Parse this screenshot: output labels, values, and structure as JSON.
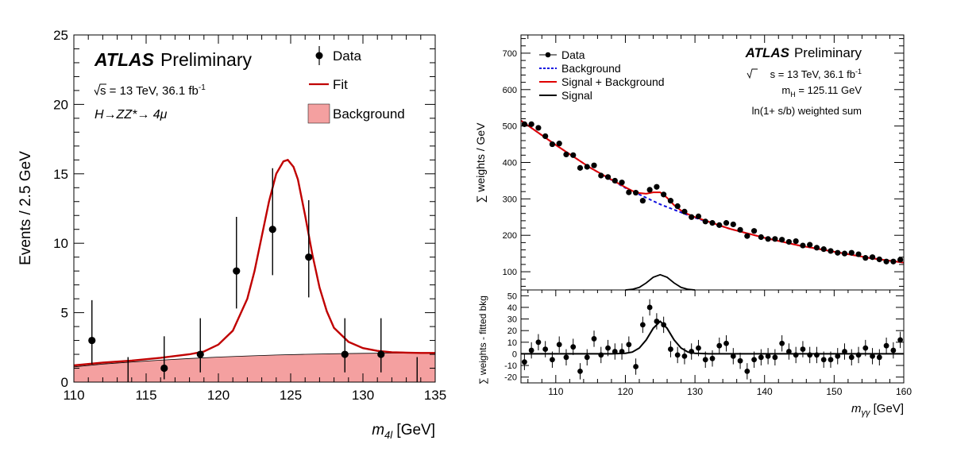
{
  "chart_data": [
    {
      "type": "scatter",
      "panel": "left",
      "ylabel": "Events /  2.5 GeV",
      "xlabel_base": "m",
      "xlabel_sub": "4l",
      "xlabel_unit": " [GeV]",
      "xlim": [
        110,
        135
      ],
      "ylim": [
        0,
        25
      ],
      "xticks": [
        110,
        115,
        120,
        125,
        130,
        135
      ],
      "yticks": [
        0,
        5,
        10,
        15,
        20,
        25
      ],
      "atlas": "ATLAS",
      "prelim": "Preliminary",
      "energy_prefix": "s",
      "energy_text": " = 13 TeV, 36.1 fb",
      "energy_sup": "-1",
      "process_text": "H→ZZ*→ 4μ",
      "legend": {
        "position": "top-right",
        "data_label": "Data",
        "fit_label": "Fit",
        "background_label": "Background"
      },
      "colors": {
        "fit": "#c00000",
        "background_fill": "#f4a0a0",
        "data": "#000000"
      },
      "series": [
        {
          "name": "Data",
          "points": [
            {
              "x": 111.25,
              "y": 3,
              "lo": 1.3,
              "hi": 5.9
            },
            {
              "x": 113.75,
              "y": 0,
              "lo": 0,
              "hi": 1.8
            },
            {
              "x": 116.25,
              "y": 1,
              "lo": 0.2,
              "hi": 3.3
            },
            {
              "x": 118.75,
              "y": 2,
              "lo": 0.7,
              "hi": 4.6
            },
            {
              "x": 121.25,
              "y": 8,
              "lo": 5.3,
              "hi": 11.9
            },
            {
              "x": 123.75,
              "y": 11,
              "lo": 7.7,
              "hi": 15.4
            },
            {
              "x": 126.25,
              "y": 9,
              "lo": 6.1,
              "hi": 13.1
            },
            {
              "x": 128.75,
              "y": 2,
              "lo": 0.7,
              "hi": 4.6
            },
            {
              "x": 131.25,
              "y": 2,
              "lo": 0.7,
              "hi": 4.6
            },
            {
              "x": 133.75,
              "y": 0,
              "lo": 0,
              "hi": 1.8
            }
          ]
        },
        {
          "name": "Fit",
          "x": [
            110,
            112,
            114,
            116,
            118,
            119,
            120,
            121,
            122,
            122.5,
            123,
            123.5,
            124,
            124.5,
            124.8,
            125.2,
            125.5,
            126,
            126.5,
            127,
            127.5,
            128,
            129,
            130,
            131,
            132,
            133,
            134,
            135
          ],
          "y": [
            1.2,
            1.4,
            1.55,
            1.75,
            2.0,
            2.2,
            2.7,
            3.7,
            6.0,
            8.0,
            10.5,
            13.0,
            15.0,
            15.9,
            16.0,
            15.5,
            14.6,
            12.0,
            9.2,
            6.8,
            5.1,
            3.9,
            2.9,
            2.45,
            2.25,
            2.15,
            2.12,
            2.1,
            2.1
          ]
        },
        {
          "name": "Background",
          "x": [
            110,
            112,
            114,
            116,
            118,
            120,
            122,
            124,
            126,
            128,
            130,
            132,
            134,
            135
          ],
          "y": [
            1.1,
            1.3,
            1.45,
            1.58,
            1.7,
            1.8,
            1.88,
            1.95,
            2.0,
            2.04,
            2.07,
            2.09,
            2.1,
            2.1
          ]
        }
      ]
    },
    {
      "type": "scatter",
      "panel": "right-top",
      "ylabel_main": "∑ weights / GeV",
      "xlim": [
        105,
        160
      ],
      "ylim": [
        50,
        750
      ],
      "yticks": [
        100,
        200,
        300,
        400,
        500,
        600,
        700
      ],
      "atlas": "ATLAS",
      "prelim": "Preliminary",
      "energy_prefix": "s",
      "energy_text": " = 13 TeV, 36.1 fb",
      "energy_sup": "-1",
      "mass_base": "m",
      "mass_sub": "H",
      "mass_text": " = 125.11 GeV",
      "weighting_text": "ln(1+ s/b) weighted sum",
      "legend": {
        "position": "top-left",
        "data_label": "Data",
        "background_label": "Background",
        "sb_label": "Signal + Background",
        "signal_label": "Signal"
      },
      "colors": {
        "background": "#1010e0",
        "signal_plus_background": "#e00000",
        "signal": "#000000"
      },
      "series": [
        {
          "name": "Data",
          "x": [
            105.5,
            106.5,
            107.5,
            108.5,
            109.5,
            110.5,
            111.5,
            112.5,
            113.5,
            114.5,
            115.5,
            116.5,
            117.5,
            118.5,
            119.5,
            120.5,
            121.5,
            122.5,
            123.5,
            124.5,
            125.5,
            126.5,
            127.5,
            128.5,
            129.5,
            130.5,
            131.5,
            132.5,
            133.5,
            134.5,
            135.5,
            136.5,
            137.5,
            138.5,
            139.5,
            140.5,
            141.5,
            142.5,
            143.5,
            144.5,
            145.5,
            146.5,
            147.5,
            148.5,
            149.5,
            150.5,
            151.5,
            152.5,
            153.5,
            154.5,
            155.5,
            156.5,
            157.5,
            158.5,
            159.5
          ],
          "y": [
            505,
            505,
            495,
            472,
            450,
            452,
            422,
            420,
            385,
            388,
            392,
            364,
            360,
            350,
            345,
            318,
            317,
            295,
            325,
            333,
            312,
            295,
            280,
            265,
            250,
            252,
            238,
            234,
            228,
            234,
            230,
            215,
            198,
            212,
            195,
            190,
            190,
            188,
            182,
            184,
            172,
            174,
            166,
            162,
            157,
            152,
            150,
            152,
            148,
            138,
            140,
            134,
            128,
            128,
            133
          ]
        },
        {
          "name": "Background",
          "x": [
            105,
            110,
            115,
            120,
            125,
            130,
            135,
            140,
            145,
            150,
            155,
            160
          ],
          "y": [
            515,
            448,
            385,
            330,
            285,
            248,
            218,
            193,
            172,
            155,
            138,
            125
          ]
        },
        {
          "name": "Signal + Background",
          "x": [
            105,
            110,
            115,
            118,
            120,
            121,
            122,
            123,
            124,
            125,
            126,
            127,
            128,
            129,
            130,
            135,
            140,
            145,
            150,
            155,
            160
          ],
          "y": [
            515,
            448,
            385,
            353,
            332,
            322,
            316,
            314,
            318,
            318,
            303,
            283,
            268,
            258,
            250,
            218,
            193,
            172,
            155,
            138,
            125
          ]
        }
      ]
    },
    {
      "type": "line",
      "panel": "right-middle",
      "name": "Signal",
      "x": [
        120,
        121,
        122,
        123,
        124,
        125,
        126,
        127,
        128,
        129,
        130
      ],
      "y": [
        0,
        1,
        4,
        11,
        20,
        24,
        20,
        11,
        4,
        1,
        0
      ]
    },
    {
      "type": "scatter",
      "panel": "right-bottom",
      "ylabel": "∑ weights - fitted bkg",
      "xlabel_base": "m",
      "xlabel_sub": "γγ",
      "xlabel_unit": " [GeV]",
      "xlim": [
        105,
        160
      ],
      "ylim": [
        -25,
        55
      ],
      "xticks": [
        110,
        120,
        130,
        140,
        150,
        160
      ],
      "yticks": [
        -20,
        -10,
        0,
        10,
        20,
        30,
        40,
        50
      ],
      "series": [
        {
          "name": "Residual data",
          "x": [
            105.5,
            106.5,
            107.5,
            108.5,
            109.5,
            110.5,
            111.5,
            112.5,
            113.5,
            114.5,
            115.5,
            116.5,
            117.5,
            118.5,
            119.5,
            120.5,
            121.5,
            122.5,
            123.5,
            124.5,
            125.5,
            126.5,
            127.5,
            128.5,
            129.5,
            130.5,
            131.5,
            132.5,
            133.5,
            134.5,
            135.5,
            136.5,
            137.5,
            138.5,
            139.5,
            140.5,
            141.5,
            142.5,
            143.5,
            144.5,
            145.5,
            146.5,
            147.5,
            148.5,
            149.5,
            150.5,
            151.5,
            152.5,
            153.5,
            154.5,
            155.5,
            156.5,
            157.5,
            158.5,
            159.5
          ],
          "y": [
            -7,
            3,
            10,
            4,
            -5,
            8,
            -3,
            6,
            -15,
            -3,
            13,
            -1,
            5,
            2,
            2,
            8,
            -11,
            25,
            40,
            28,
            25,
            4,
            -1,
            -2,
            2,
            5,
            -5,
            -4,
            7,
            9,
            -2,
            -6,
            -15,
            -5,
            -3,
            -2,
            -3,
            9,
            2,
            -1,
            4,
            -1,
            -1,
            -5,
            -5,
            -2,
            2,
            -3,
            -1,
            5,
            -2,
            -3,
            7,
            3,
            12
          ]
        },
        {
          "name": "Signal",
          "x": [
            105,
            118,
            120,
            121,
            122,
            123,
            124,
            125,
            126,
            127,
            128,
            129,
            130,
            132,
            160
          ],
          "y": [
            0,
            0,
            0.5,
            1.5,
            5,
            12,
            22,
            28,
            22,
            12,
            5,
            1.5,
            0.5,
            0,
            0
          ]
        }
      ]
    }
  ]
}
